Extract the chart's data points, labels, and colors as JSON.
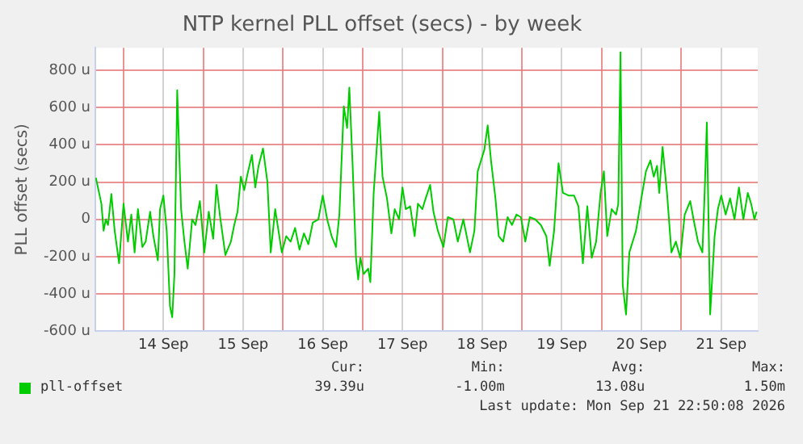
{
  "chart_data": {
    "type": "line",
    "title": "NTP kernel PLL offset (secs) - by week",
    "ylabel": "PLL offset (secs)",
    "x": [
      "2026-09-13T15:40",
      "2026-09-13T17:20",
      "2026-09-13T18:00",
      "2026-09-13T18:40",
      "2026-09-13T19:20",
      "2026-09-13T20:20",
      "2026-09-13T21:20",
      "2026-09-13T22:40",
      "2026-09-14T00:00",
      "2026-09-14T01:20",
      "2026-09-14T02:20",
      "2026-09-14T03:20",
      "2026-09-14T04:20",
      "2026-09-14T05:40",
      "2026-09-14T06:40",
      "2026-09-14T08:00",
      "2026-09-14T09:00",
      "2026-09-14T10:20",
      "2026-09-14T11:00",
      "2026-09-14T12:00",
      "2026-09-14T13:00",
      "2026-09-14T14:00",
      "2026-09-14T14:40",
      "2026-09-14T15:20",
      "2026-09-14T16:10",
      "2026-09-14T17:20",
      "2026-09-14T18:20",
      "2026-09-14T19:20",
      "2026-09-14T20:40",
      "2026-09-14T21:40",
      "2026-09-14T23:00",
      "2026-09-15T00:20",
      "2026-09-15T01:40",
      "2026-09-15T03:00",
      "2026-09-15T04:00",
      "2026-09-15T05:00",
      "2026-09-15T06:40",
      "2026-09-15T08:20",
      "2026-09-15T09:20",
      "2026-09-15T10:20",
      "2026-09-15T11:20",
      "2026-09-15T12:20",
      "2026-09-15T13:20",
      "2026-09-15T14:40",
      "2026-09-15T15:40",
      "2026-09-15T16:40",
      "2026-09-15T18:00",
      "2026-09-15T19:20",
      "2026-09-15T20:20",
      "2026-09-15T21:40",
      "2026-09-15T22:40",
      "2026-09-15T23:40",
      "2026-09-16T01:00",
      "2026-09-16T02:20",
      "2026-09-16T03:40",
      "2026-09-16T05:00",
      "2026-09-16T06:20",
      "2026-09-16T07:40",
      "2026-09-16T09:00",
      "2026-09-16T10:40",
      "2026-09-16T12:00",
      "2026-09-16T13:20",
      "2026-09-16T14:40",
      "2026-09-16T16:00",
      "2026-09-16T17:00",
      "2026-09-16T18:20",
      "2026-09-16T19:20",
      "2026-09-16T20:00",
      "2026-09-16T21:00",
      "2026-09-16T22:00",
      "2026-09-16T22:40",
      "2026-09-16T23:20",
      "2026-09-17T00:20",
      "2026-09-17T01:40",
      "2026-09-17T02:20",
      "2026-09-17T03:20",
      "2026-09-17T05:00",
      "2026-09-17T06:00",
      "2026-09-17T07:20",
      "2026-09-17T08:40",
      "2026-09-17T09:40",
      "2026-09-17T11:00",
      "2026-09-17T12:00",
      "2026-09-17T13:00",
      "2026-09-17T14:20",
      "2026-09-17T15:40",
      "2026-09-17T16:40",
      "2026-09-17T18:00",
      "2026-09-17T19:00",
      "2026-09-17T20:20",
      "2026-09-17T21:20",
      "2026-09-17T22:40",
      "2026-09-18T00:20",
      "2026-09-18T01:40",
      "2026-09-18T03:20",
      "2026-09-18T04:40",
      "2026-09-18T06:20",
      "2026-09-18T08:20",
      "2026-09-18T09:40",
      "2026-09-18T10:40",
      "2026-09-18T11:40",
      "2026-09-18T12:40",
      "2026-09-18T13:40",
      "2026-09-18T14:40",
      "2026-09-18T16:00",
      "2026-09-18T17:00",
      "2026-09-18T18:20",
      "2026-09-18T19:40",
      "2026-09-18T21:00",
      "2026-09-18T22:20",
      "2026-09-18T23:40",
      "2026-09-19T01:00",
      "2026-09-19T02:20",
      "2026-09-19T04:00",
      "2026-09-19T05:40",
      "2026-09-19T07:20",
      "2026-09-19T08:20",
      "2026-09-19T09:40",
      "2026-09-19T11:00",
      "2026-09-19T12:20",
      "2026-09-19T14:00",
      "2026-09-19T15:40",
      "2026-09-19T17:00",
      "2026-09-19T18:20",
      "2026-09-19T19:40",
      "2026-09-19T21:00",
      "2026-09-19T22:20",
      "2026-09-19T23:40",
      "2026-09-20T00:40",
      "2026-09-20T01:40",
      "2026-09-20T03:00",
      "2026-09-20T04:20",
      "2026-09-20T05:00",
      "2026-09-20T05:40",
      "2026-09-20T06:20",
      "2026-09-20T07:20",
      "2026-09-20T08:20",
      "2026-09-20T09:20",
      "2026-09-20T10:20",
      "2026-09-20T11:40",
      "2026-09-20T13:20",
      "2026-09-20T14:40",
      "2026-09-20T15:40",
      "2026-09-20T16:40",
      "2026-09-20T17:20",
      "2026-09-20T18:20",
      "2026-09-20T19:40",
      "2026-09-20T21:00",
      "2026-09-20T22:20",
      "2026-09-20T23:40",
      "2026-09-21T01:00",
      "2026-09-21T02:40",
      "2026-09-21T03:40",
      "2026-09-21T05:00",
      "2026-09-21T06:20",
      "2026-09-21T07:00",
      "2026-09-21T07:40",
      "2026-09-21T08:40",
      "2026-09-21T10:00",
      "2026-09-21T11:00",
      "2026-09-21T12:00",
      "2026-09-21T13:20",
      "2026-09-21T14:40",
      "2026-09-21T16:00",
      "2026-09-21T17:20",
      "2026-09-21T18:40",
      "2026-09-21T20:00",
      "2026-09-21T21:00",
      "2026-09-21T22:00",
      "2026-09-21T22:40"
    ],
    "series": [
      {
        "name": "pll-offset",
        "color": "#00cc00",
        "values": [
          223,
          84,
          -61,
          0,
          -30,
          136,
          -61,
          -235,
          84,
          -119,
          26,
          -177,
          55,
          -148,
          -119,
          41,
          -90,
          -220,
          55,
          128,
          -61,
          -467,
          -525,
          -293,
          693,
          55,
          -119,
          -264,
          0,
          -30,
          98,
          -177,
          41,
          -104,
          185,
          26,
          -191,
          -119,
          -30,
          41,
          229,
          157,
          243,
          345,
          171,
          287,
          380,
          200,
          -177,
          55,
          -61,
          -177,
          -90,
          -119,
          -46,
          -162,
          -75,
          -133,
          -17,
          0,
          128,
          0,
          -90,
          -148,
          26,
          606,
          490,
          707,
          287,
          -206,
          -322,
          -206,
          -293,
          -264,
          -336,
          142,
          577,
          229,
          113,
          -75,
          55,
          0,
          171,
          55,
          70,
          -90,
          84,
          55,
          113,
          185,
          41,
          -61,
          -148,
          12,
          0,
          -119,
          0,
          -177,
          -61,
          258,
          316,
          374,
          504,
          316,
          113,
          -90,
          -119,
          12,
          -30,
          26,
          12,
          -119,
          12,
          0,
          -30,
          -90,
          -249,
          -61,
          301,
          142,
          128,
          128,
          70,
          -235,
          70,
          -206,
          -119,
          142,
          258,
          -90,
          55,
          26,
          84,
          896,
          -351,
          -510,
          -177,
          -119,
          -61,
          84,
          258,
          316,
          229,
          287,
          142,
          388,
          142,
          -177,
          -119,
          -206,
          26,
          98,
          0,
          -119,
          -177,
          142,
          519,
          -510,
          -90,
          55,
          128,
          26,
          113,
          0,
          171,
          0,
          142,
          84,
          0,
          41
        ]
      }
    ],
    "xlim": [
      "2026-09-13T15:30",
      "2026-09-21T23:00"
    ],
    "xticks": [
      {
        "value": "2026-09-14T00:00",
        "label": null
      },
      {
        "value": "2026-09-14T12:00",
        "label": "14 Sep"
      },
      {
        "value": "2026-09-15T00:00",
        "label": null
      },
      {
        "value": "2026-09-15T12:00",
        "label": "15 Sep"
      },
      {
        "value": "2026-09-16T00:00",
        "label": null
      },
      {
        "value": "2026-09-16T12:00",
        "label": "16 Sep"
      },
      {
        "value": "2026-09-17T00:00",
        "label": null
      },
      {
        "value": "2026-09-17T12:00",
        "label": "17 Sep"
      },
      {
        "value": "2026-09-18T00:00",
        "label": null
      },
      {
        "value": "2026-09-18T12:00",
        "label": "18 Sep"
      },
      {
        "value": "2026-09-19T00:00",
        "label": null
      },
      {
        "value": "2026-09-19T12:00",
        "label": "19 Sep"
      },
      {
        "value": "2026-09-20T00:00",
        "label": null
      },
      {
        "value": "2026-09-20T12:00",
        "label": "20 Sep"
      },
      {
        "value": "2026-09-21T00:00",
        "label": null
      },
      {
        "value": "2026-09-21T12:00",
        "label": "21 Sep"
      }
    ],
    "ylim": [
      -600,
      920
    ],
    "yticks": [
      {
        "value": -600,
        "label": "-600 u"
      },
      {
        "value": -400,
        "label": "-400 u"
      },
      {
        "value": -200,
        "label": "-200 u"
      },
      0,
      {
        "value": 200,
        "label": "200 u"
      },
      {
        "value": 400,
        "label": "400 u"
      },
      {
        "value": 600,
        "label": "600 u"
      },
      {
        "value": 800,
        "label": "800 u"
      }
    ],
    "grid": true,
    "legend": "bottom",
    "marker": "none",
    "line_style": "solid",
    "annotations": [
      "Cur:",
      "Min:",
      "Avg:",
      "Max:",
      "39.39u",
      "-1.00m",
      "13.08u",
      "1.50m",
      "Last update: Mon Sep 21 22:50:08 2026"
    ]
  }
}
